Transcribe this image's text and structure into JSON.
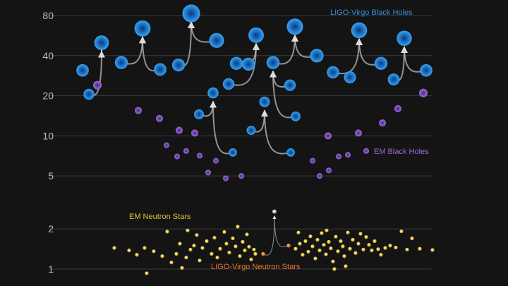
{
  "chart_data": {
    "type": "scatter",
    "title": "",
    "xlabel": "",
    "ylabel": "",
    "y_scale": "log",
    "ylim": [
      0.85,
      95
    ],
    "yticks": [
      1,
      2,
      5,
      10,
      20,
      40,
      80
    ],
    "grid": true,
    "colors": {
      "background": "#141414",
      "ligo_black_holes": "#2e8fe0",
      "em_black_holes": "#8a5cc8",
      "em_neutron_stars": "#e3c23a",
      "ligo_neutron_stars": "#e8752e",
      "merger_arrow": "#cfcfcf"
    },
    "series": [
      {
        "name": "LIGO-Virgo Black Holes",
        "kind": "ligo_black_holes",
        "points": [
          {
            "x": 117,
            "y": 31.0
          },
          {
            "x": 144,
            "y": 50.0
          },
          {
            "x": 172,
            "y": 35.5
          },
          {
            "x": 202,
            "y": 64.0
          },
          {
            "x": 227,
            "y": 31.5
          },
          {
            "x": 253,
            "y": 34.0
          },
          {
            "x": 271,
            "y": 83.0
          },
          {
            "x": 307,
            "y": 52.0
          },
          {
            "x": 335,
            "y": 35.0
          },
          {
            "x": 363,
            "y": 57.0
          },
          {
            "x": 387,
            "y": 35.5
          },
          {
            "x": 418,
            "y": 66.0
          },
          {
            "x": 449,
            "y": 40.0
          },
          {
            "x": 472,
            "y": 30.0
          },
          {
            "x": 509,
            "y": 62.0
          },
          {
            "x": 540,
            "y": 35.0
          },
          {
            "x": 573,
            "y": 54.0
          },
          {
            "x": 604,
            "y": 31.0
          },
          {
            "x": 126,
            "y": 20.5
          },
          {
            "x": 302,
            "y": 21.0
          },
          {
            "x": 324,
            "y": 24.5
          },
          {
            "x": 352,
            "y": 34.5
          },
          {
            "x": 375,
            "y": 18.0
          },
          {
            "x": 411,
            "y": 24.0
          },
          {
            "x": 496,
            "y": 27.5
          },
          {
            "x": 558,
            "y": 26.5
          },
          {
            "x": 282,
            "y": 14.5
          },
          {
            "x": 356,
            "y": 11.0
          },
          {
            "x": 419,
            "y": 14.0
          },
          {
            "x": 330,
            "y": 7.5
          },
          {
            "x": 412,
            "y": 7.5
          }
        ]
      },
      {
        "name": "EM Black Holes",
        "kind": "em_black_holes",
        "points": [
          {
            "x": 138,
            "y": 24.0
          },
          {
            "x": 196,
            "y": 15.5
          },
          {
            "x": 226,
            "y": 13.5
          },
          {
            "x": 254,
            "y": 11.0
          },
          {
            "x": 276,
            "y": 10.5
          },
          {
            "x": 236,
            "y": 8.5
          },
          {
            "x": 251,
            "y": 7.0
          },
          {
            "x": 264,
            "y": 7.7
          },
          {
            "x": 283,
            "y": 7.1
          },
          {
            "x": 295,
            "y": 5.3
          },
          {
            "x": 306,
            "y": 6.5
          },
          {
            "x": 320,
            "y": 4.8
          },
          {
            "x": 342,
            "y": 5.0
          },
          {
            "x": 443,
            "y": 6.5
          },
          {
            "x": 453,
            "y": 5.0
          },
          {
            "x": 466,
            "y": 5.5
          },
          {
            "x": 480,
            "y": 7.0
          },
          {
            "x": 493,
            "y": 7.2
          },
          {
            "x": 465,
            "y": 10.0
          },
          {
            "x": 508,
            "y": 10.5
          },
          {
            "x": 519,
            "y": 7.7
          },
          {
            "x": 542,
            "y": 12.5
          },
          {
            "x": 564,
            "y": 16.0
          },
          {
            "x": 600,
            "y": 21.0
          }
        ]
      },
      {
        "name": "EM Neutron Stars",
        "kind": "em_neutron_stars",
        "points": [
          {
            "x": 162,
            "y": 1.44
          },
          {
            "x": 183,
            "y": 1.38
          },
          {
            "x": 194,
            "y": 1.28
          },
          {
            "x": 205,
            "y": 1.44
          },
          {
            "x": 208,
            "y": 0.93
          },
          {
            "x": 218,
            "y": 1.36
          },
          {
            "x": 230,
            "y": 1.25
          },
          {
            "x": 237,
            "y": 1.91
          },
          {
            "x": 243,
            "y": 1.12
          },
          {
            "x": 250,
            "y": 1.3
          },
          {
            "x": 255,
            "y": 1.55
          },
          {
            "x": 258,
            "y": 1.02
          },
          {
            "x": 264,
            "y": 1.22
          },
          {
            "x": 266,
            "y": 1.95
          },
          {
            "x": 270,
            "y": 1.4
          },
          {
            "x": 275,
            "y": 1.5
          },
          {
            "x": 279,
            "y": 1.8
          },
          {
            "x": 283,
            "y": 1.16
          },
          {
            "x": 287,
            "y": 1.44
          },
          {
            "x": 293,
            "y": 1.62
          },
          {
            "x": 300,
            "y": 1.3
          },
          {
            "x": 304,
            "y": 1.72
          },
          {
            "x": 308,
            "y": 1.22
          },
          {
            "x": 312,
            "y": 1.42
          },
          {
            "x": 318,
            "y": 1.9
          },
          {
            "x": 321,
            "y": 1.55
          },
          {
            "x": 325,
            "y": 1.33
          },
          {
            "x": 330,
            "y": 1.7
          },
          {
            "x": 334,
            "y": 1.48
          },
          {
            "x": 337,
            "y": 2.08
          },
          {
            "x": 340,
            "y": 1.25
          },
          {
            "x": 344,
            "y": 1.6
          },
          {
            "x": 347,
            "y": 1.38
          },
          {
            "x": 350,
            "y": 1.82
          },
          {
            "x": 353,
            "y": 1.47
          },
          {
            "x": 356,
            "y": 1.18
          },
          {
            "x": 360,
            "y": 1.4
          },
          {
            "x": 362,
            "y": 1.3
          },
          {
            "x": 419,
            "y": 1.42
          },
          {
            "x": 423,
            "y": 1.88
          },
          {
            "x": 425,
            "y": 1.55
          },
          {
            "x": 429,
            "y": 1.28
          },
          {
            "x": 433,
            "y": 1.62
          },
          {
            "x": 437,
            "y": 1.35
          },
          {
            "x": 440,
            "y": 1.76
          },
          {
            "x": 443,
            "y": 1.48
          },
          {
            "x": 447,
            "y": 1.2
          },
          {
            "x": 450,
            "y": 1.66
          },
          {
            "x": 453,
            "y": 1.38
          },
          {
            "x": 456,
            "y": 1.86
          },
          {
            "x": 459,
            "y": 1.52
          },
          {
            "x": 462,
            "y": 1.29
          },
          {
            "x": 463,
            "y": 1.95
          },
          {
            "x": 466,
            "y": 1.6
          },
          {
            "x": 469,
            "y": 1.43
          },
          {
            "x": 472,
            "y": 1.14
          },
          {
            "x": 474,
            "y": 1.0
          },
          {
            "x": 476,
            "y": 1.75
          },
          {
            "x": 479,
            "y": 1.36
          },
          {
            "x": 483,
            "y": 1.62
          },
          {
            "x": 486,
            "y": 1.48
          },
          {
            "x": 488,
            "y": 1.25
          },
          {
            "x": 490,
            "y": 1.05
          },
          {
            "x": 493,
            "y": 1.88
          },
          {
            "x": 496,
            "y": 1.42
          },
          {
            "x": 500,
            "y": 1.66
          },
          {
            "x": 504,
            "y": 1.32
          },
          {
            "x": 508,
            "y": 1.55
          },
          {
            "x": 511,
            "y": 1.84
          },
          {
            "x": 515,
            "y": 1.4
          },
          {
            "x": 519,
            "y": 1.74
          },
          {
            "x": 523,
            "y": 1.52
          },
          {
            "x": 527,
            "y": 1.38
          },
          {
            "x": 531,
            "y": 1.62
          },
          {
            "x": 536,
            "y": 1.41
          },
          {
            "x": 540,
            "y": 1.28
          },
          {
            "x": 546,
            "y": 1.44
          },
          {
            "x": 553,
            "y": 1.5
          },
          {
            "x": 561,
            "y": 1.45
          },
          {
            "x": 569,
            "y": 1.92
          },
          {
            "x": 577,
            "y": 1.4
          },
          {
            "x": 584,
            "y": 1.7
          },
          {
            "x": 595,
            "y": 1.42
          },
          {
            "x": 613,
            "y": 1.39
          }
        ]
      },
      {
        "name": "LIGO-Virgo Neutron Stars",
        "kind": "ligo_neutron_stars",
        "points": [
          {
            "x": 373,
            "y": 1.3
          },
          {
            "x": 409,
            "y": 1.5
          },
          {
            "x": 389,
            "y": 2.7
          }
        ]
      }
    ],
    "mergers": [
      {
        "from": [
          [
            126,
            20.5
          ],
          [
            144,
            50.0
          ]
        ],
        "to": [
          144,
          50.0
        ]
      },
      {
        "from": [
          [
            172,
            35.5
          ],
          [
            227,
            31.5
          ]
        ],
        "to": [
          202,
          64.0
        ]
      },
      {
        "from": [
          [
            253,
            34.0
          ],
          [
            307,
            52.0
          ]
        ],
        "to": [
          271,
          83.0
        ]
      },
      {
        "from": [
          [
            335,
            35.0
          ],
          [
            324,
            24.5
          ]
        ],
        "to": [
          363,
          57.0
        ]
      },
      {
        "from": [
          [
            387,
            35.5
          ],
          [
            449,
            40.0
          ]
        ],
        "to": [
          418,
          66.0
        ]
      },
      {
        "from": [
          [
            472,
            30.0
          ],
          [
            540,
            35.0
          ]
        ],
        "to": [
          509,
          62.0
        ]
      },
      {
        "from": [
          [
            558,
            26.5
          ],
          [
            604,
            31.0
          ]
        ],
        "to": [
          573,
          54.0
        ]
      },
      {
        "from": [
          [
            282,
            14.5
          ],
          [
            330,
            7.5
          ]
        ],
        "to": [
          302,
          21.0
        ]
      },
      {
        "from": [
          [
            356,
            11.0
          ],
          [
            412,
            7.5
          ]
        ],
        "to": [
          375,
          18.0
        ]
      },
      {
        "from": [
          [
            419,
            14.0
          ],
          [
            411,
            24.0
          ]
        ],
        "to": [
          387,
          35.5
        ]
      },
      {
        "from": [
          [
            373,
            1.3
          ],
          [
            409,
            1.5
          ]
        ],
        "to": [
          389,
          2.7
        ]
      }
    ],
    "labels": {
      "ligo_bh": "LIGO-Virgo Black Holes",
      "em_bh": "EM Black Holes",
      "em_ns": "EM Neutron Stars",
      "ligo_ns": "LIGO-Virgo Neutron Stars"
    }
  }
}
